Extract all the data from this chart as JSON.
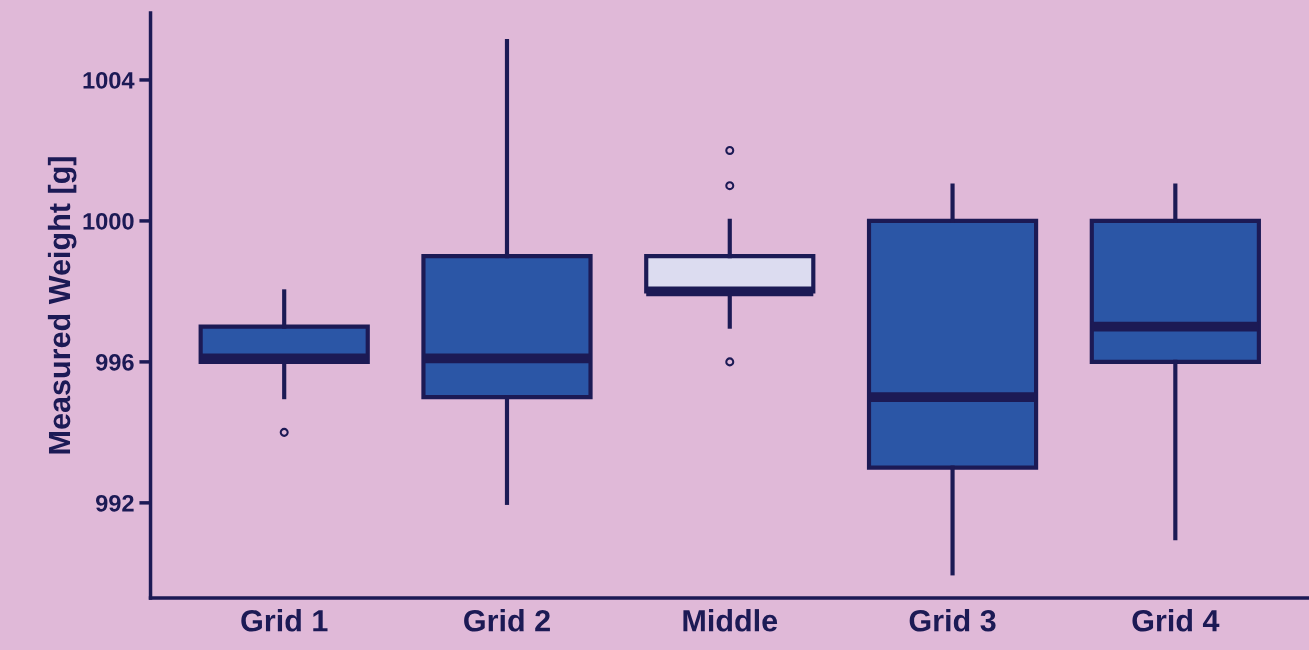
{
  "chart_data": {
    "type": "box",
    "ylabel": "Measured Weight [g]",
    "categories": [
      "Grid 1",
      "Grid 2",
      "Middle",
      "Grid 3",
      "Grid 4"
    ],
    "boxes": [
      {
        "low": 995,
        "q1": 996,
        "median": 996.1,
        "q3": 997,
        "high": 998,
        "outliers": [
          994
        ]
      },
      {
        "low": 992,
        "q1": 995,
        "median": 996.1,
        "q3": 999,
        "high": 1005.1
      },
      {
        "low": 997,
        "q1": 998,
        "median": 998,
        "q3": 999,
        "high": 1000,
        "outliers": [
          996,
          1001,
          1002
        ]
      },
      {
        "low": 990,
        "q1": 993,
        "median": 995,
        "q3": 1000,
        "high": 1001
      },
      {
        "low": 991,
        "q1": 996,
        "median": 997,
        "q3": 1000,
        "high": 1001
      }
    ],
    "colors": [
      "#2b56a6",
      "#2b56a6",
      "#dcdcf0",
      "#2b56a6",
      "#2b56a6"
    ],
    "ylim": [
      989.3,
      1005.9
    ],
    "yticks": [
      992,
      996,
      1000,
      1004
    ],
    "grid": false
  }
}
